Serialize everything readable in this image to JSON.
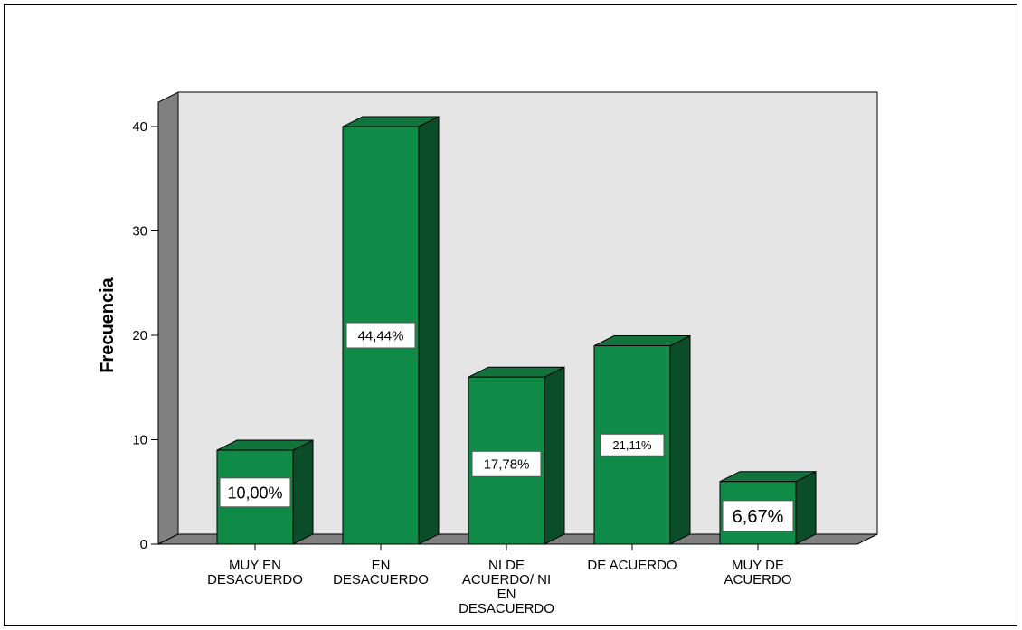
{
  "chart_data": {
    "type": "bar",
    "title": "",
    "xlabel": "",
    "ylabel": "Frecuencia",
    "ylim": [
      0,
      40
    ],
    "yticks": [
      0,
      10,
      20,
      30,
      40
    ],
    "categories": [
      [
        "MUY EN",
        "DESACUERDO"
      ],
      [
        "EN",
        "DESACUERDO"
      ],
      [
        "NI DE",
        "ACUERDO/ NI",
        "EN",
        "DESACUERDO"
      ],
      [
        "DE ACUERDO"
      ],
      [
        "MUY DE",
        "ACUERDO"
      ]
    ],
    "values": [
      9,
      40,
      16,
      19,
      6
    ],
    "data_labels": [
      "10,00%",
      "44,44%",
      "17,78%",
      "21,11%",
      "6,67%"
    ],
    "grid": false,
    "legend": "none",
    "colors": {
      "bar_front": "#0f8a47",
      "bar_side": "#0a4d28",
      "bar_top": "#13733c",
      "plot_back": "#e5e5e5",
      "wall_left": "#808080",
      "floor": "#808080"
    }
  }
}
